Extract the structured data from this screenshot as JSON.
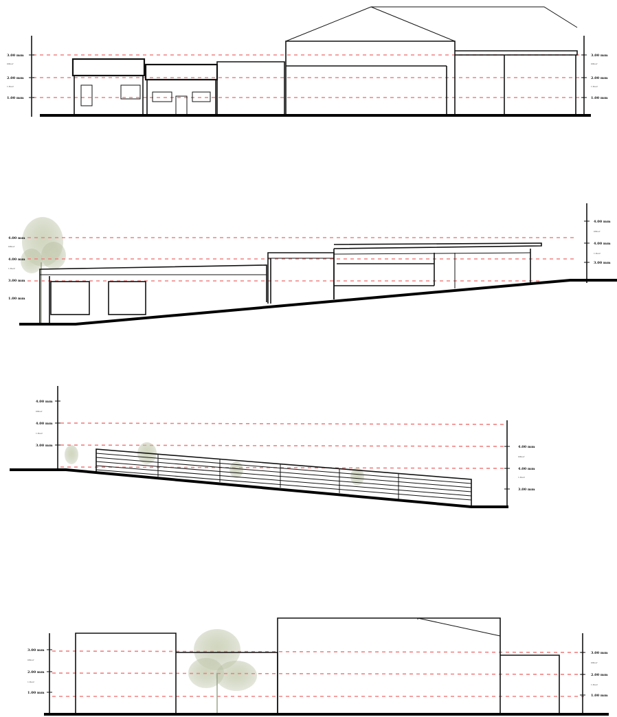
{
  "elevations": [
    {
      "id": "elevation-1",
      "levels_left": [
        {
          "label": "3.00 mm",
          "sub": "Ofloor"
        },
        {
          "label": "2.00 mm",
          "sub": "1.floor"
        },
        {
          "label": "1.00 mm",
          "sub": ""
        }
      ],
      "levels_right": [
        {
          "label": "3.00 mm",
          "sub": "Ofloor"
        },
        {
          "label": "2.00 mm",
          "sub": "1.floor"
        },
        {
          "label": "1.00 mm",
          "sub": ""
        }
      ]
    },
    {
      "id": "elevation-2",
      "levels_left": [
        {
          "label": "4.00 mm",
          "sub": "Ofloor"
        },
        {
          "label": "4.00 mm",
          "sub": "1.floor"
        },
        {
          "label": "3.00 mm",
          "sub": ""
        },
        {
          "label": "1.00 mm",
          "sub": ""
        }
      ],
      "levels_right": [
        {
          "label": "4.00 mm",
          "sub": "Ofloor"
        },
        {
          "label": "4.00 mm",
          "sub": "1.floor"
        },
        {
          "label": "3.00 mm",
          "sub": ""
        }
      ]
    },
    {
      "id": "elevation-3",
      "levels_left": [
        {
          "label": "4.00 mm",
          "sub": "Ofloor"
        },
        {
          "label": "4.00 mm",
          "sub": "1.floor"
        },
        {
          "label": "3.00 mm",
          "sub": ""
        }
      ],
      "levels_right": [
        {
          "label": "4.00 mm",
          "sub": "Ofloor"
        },
        {
          "label": "4.00 mm",
          "sub": "1.floor"
        },
        {
          "label": "3.00 mm",
          "sub": ""
        }
      ]
    },
    {
      "id": "elevation-4",
      "levels_left": [
        {
          "label": "3.00 mm",
          "sub": "Ofloor"
        },
        {
          "label": "2.00 mm",
          "sub": "1.floor"
        },
        {
          "label": "1.00 mm",
          "sub": ""
        }
      ],
      "levels_right": [
        {
          "label": "3.00 mm",
          "sub": "Ofloor"
        },
        {
          "label": "2.00 mm",
          "sub": "1.floor"
        },
        {
          "label": "1.00 mm",
          "sub": ""
        }
      ]
    }
  ],
  "colors": {
    "line": "#111111",
    "ground": "#000000",
    "level_dash": "#f08080",
    "tree": "#b9c2a4"
  }
}
